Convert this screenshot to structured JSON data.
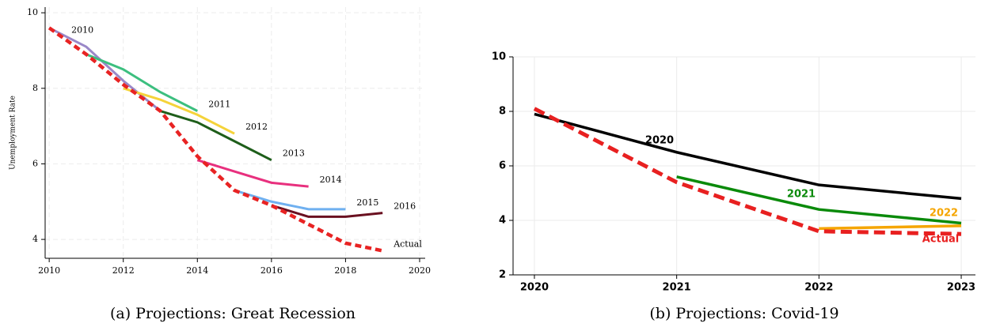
{
  "chart_data": [
    {
      "type": "line",
      "ylabel": "Unemployment Rate",
      "caption": "(a) Projections: Great Recession",
      "x": [
        2010,
        2011,
        2012,
        2013,
        2014,
        2015,
        2016,
        2017,
        2018,
        2019
      ],
      "xlim": [
        2009.89,
        2020.15
      ],
      "xticks": [
        2010,
        2012,
        2014,
        2016,
        2018,
        2020
      ],
      "ylim": [
        3.5,
        10.15
      ],
      "yticks": [
        4,
        6,
        8,
        10
      ],
      "grid": true,
      "series": [
        {
          "name": "2010",
          "color": "#9a88c8",
          "linestyle": "solid",
          "values": [
            9.6,
            9.1,
            8.2,
            7.4,
            null,
            null,
            null,
            null,
            null,
            null
          ]
        },
        {
          "name": "2011",
          "color": "#3cbf7f",
          "linestyle": "solid",
          "values": [
            null,
            8.9,
            8.5,
            7.9,
            7.4,
            null,
            null,
            null,
            null,
            null
          ]
        },
        {
          "name": "2012",
          "color": "#f5d33a",
          "linestyle": "solid",
          "values": [
            null,
            null,
            8.0,
            7.7,
            7.3,
            6.8,
            null,
            null,
            null,
            null
          ]
        },
        {
          "name": "2013",
          "color": "#1e5e1a",
          "linestyle": "solid",
          "values": [
            null,
            null,
            null,
            7.4,
            7.1,
            6.6,
            6.1,
            null,
            null,
            null
          ]
        },
        {
          "name": "2014",
          "color": "#e8307e",
          "linestyle": "solid",
          "values": [
            null,
            null,
            null,
            null,
            6.1,
            5.8,
            5.5,
            5.4,
            null,
            null
          ]
        },
        {
          "name": "2015",
          "color": "#6fb0f0",
          "linestyle": "solid",
          "values": [
            null,
            null,
            null,
            null,
            null,
            5.3,
            5.0,
            4.8,
            4.8,
            null
          ]
        },
        {
          "name": "2016",
          "color": "#6a1020",
          "linestyle": "solid",
          "values": [
            null,
            null,
            null,
            null,
            null,
            null,
            4.9,
            4.6,
            4.6,
            4.7
          ]
        },
        {
          "name": "Actual",
          "color": "#e82323",
          "linestyle": "dotted",
          "values": [
            9.6,
            8.9,
            8.1,
            7.4,
            6.2,
            5.3,
            4.9,
            4.4,
            3.9,
            3.7
          ]
        }
      ]
    },
    {
      "type": "line",
      "caption": "(b) Projections: Covid-19",
      "x": [
        2020,
        2021,
        2022,
        2023
      ],
      "xlim": [
        2019.85,
        2023.1
      ],
      "xticks": [
        2020,
        2021,
        2022,
        2023
      ],
      "ylim": [
        2,
        10
      ],
      "yticks": [
        2,
        4,
        6,
        8,
        10
      ],
      "grid": true,
      "series": [
        {
          "name": "2020",
          "color": "#000000",
          "linestyle": "solid",
          "values": [
            7.9,
            6.5,
            5.3,
            4.8
          ]
        },
        {
          "name": "2021",
          "color": "#0a8a0a",
          "linestyle": "solid",
          "values": [
            null,
            5.6,
            4.4,
            3.9
          ]
        },
        {
          "name": "2022",
          "color": "#f5a500",
          "linestyle": "solid",
          "values": [
            null,
            null,
            3.7,
            3.8
          ]
        },
        {
          "name": "Actual",
          "color": "#e82020",
          "linestyle": "dashed",
          "values": [
            8.1,
            5.4,
            3.6,
            3.5
          ]
        }
      ]
    }
  ]
}
